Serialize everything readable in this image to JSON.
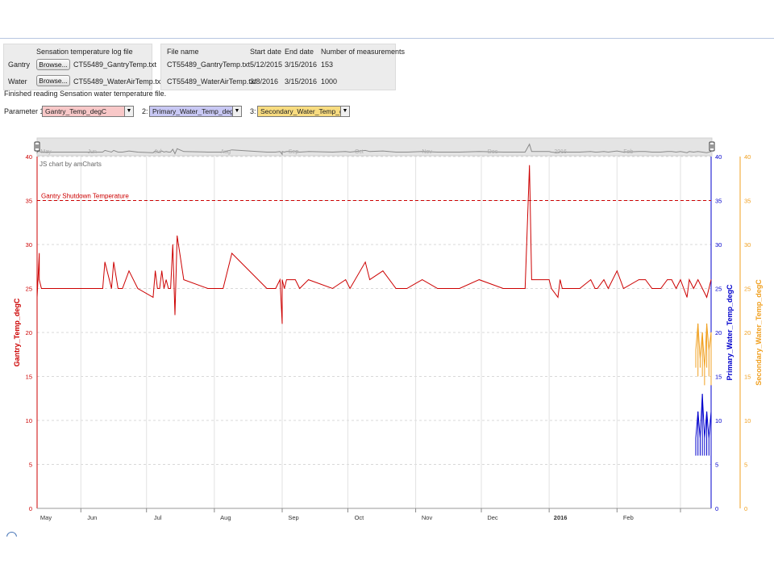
{
  "file_panel": {
    "header": "Sensation temperature log file",
    "rows": [
      {
        "label": "Gantry",
        "button": "Browse...",
        "file": "CT55489_GantryTemp.txt"
      },
      {
        "label": "Water",
        "button": "Browse...",
        "file": "CT55489_WaterAirTemp.txt"
      }
    ]
  },
  "info_table": {
    "headers": [
      "File name",
      "Start date",
      "End date",
      "Number of measurements"
    ],
    "rows": [
      [
        "CT55489_GantryTemp.txt",
        "5/12/2015",
        "3/15/2016",
        "153"
      ],
      [
        "CT55489_WaterAirTemp.txt",
        "3/8/2016",
        "3/15/2016",
        "1000"
      ]
    ]
  },
  "status": "Finished reading Sensation water temperature file.",
  "params": {
    "p1_label": "Parameter 1:",
    "p1_value": "Gantry_Temp_degC",
    "p1_color": "#f8c8c8",
    "p2_label": "2:",
    "p2_value": "Primary_Water_Temp_degC",
    "p2_color": "#c8c8f4",
    "p3_label": "3:",
    "p3_value": "Secondary_Water_Temp_degC",
    "p3_color": "#f8dc80"
  },
  "chart_data": {
    "type": "line",
    "credit": "JS chart by amCharts",
    "guide": {
      "label": "Gantry Shutdown Temperature",
      "value": 35,
      "color": "#cc0000"
    },
    "x_ticks": [
      "May",
      "Jun",
      "Jul",
      "Aug",
      "Sep",
      "Oct",
      "Nov",
      "Dec",
      "2016",
      "Feb"
    ],
    "x_range": [
      "2015-05-12",
      "2016-03-15"
    ],
    "y_axes": [
      {
        "title": "Gantry_Temp_degC",
        "color": "#cc0000",
        "range": [
          0,
          40
        ],
        "ticks": [
          "0",
          "5",
          "10",
          "15",
          "20",
          "25",
          "30",
          "35",
          "40"
        ]
      },
      {
        "title": "Primary_Water_Temp_degC",
        "color": "#0000cc",
        "range": [
          0,
          40
        ],
        "ticks": [
          "0",
          "5",
          "10",
          "15",
          "20",
          "25",
          "30",
          "35",
          "40"
        ]
      },
      {
        "title": "Secondary_Water_Temp_degC",
        "color": "#f0a020",
        "range": [
          0,
          40
        ],
        "ticks": [
          "0",
          "5",
          "10",
          "15",
          "20",
          "25",
          "30",
          "35",
          "40"
        ]
      }
    ],
    "series": [
      {
        "name": "Gantry_Temp_degC",
        "color": "#cc0000",
        "x": [
          "2015-05-12",
          "2015-05-12",
          "2015-05-13",
          "2015-05-13",
          "2015-05-14",
          "2015-05-18",
          "2015-06-11",
          "2015-06-12",
          "2015-06-14",
          "2015-06-15",
          "2015-06-16",
          "2015-06-18",
          "2015-06-20",
          "2015-06-23",
          "2015-06-27",
          "2015-07-04",
          "2015-07-05",
          "2015-07-06",
          "2015-07-07",
          "2015-07-08",
          "2015-07-09",
          "2015-07-10",
          "2015-07-11",
          "2015-07-12",
          "2015-07-13",
          "2015-07-14",
          "2015-07-15",
          "2015-07-18",
          "2015-07-29",
          "2015-08-05",
          "2015-08-09",
          "2015-08-25",
          "2015-08-29",
          "2015-08-31",
          "2015-09-01",
          "2015-09-01",
          "2015-09-02",
          "2015-09-03",
          "2015-09-07",
          "2015-09-09",
          "2015-09-13",
          "2015-09-24",
          "2015-09-30",
          "2015-10-02",
          "2015-10-09",
          "2015-10-11",
          "2015-10-17",
          "2015-10-23",
          "2015-10-28",
          "2015-11-04",
          "2015-11-11",
          "2015-11-21",
          "2015-11-30",
          "2015-12-11",
          "2015-12-21",
          "2015-12-23",
          "2015-12-24",
          "2015-12-25",
          "2016-01-01",
          "2016-01-02",
          "2016-01-05",
          "2016-01-06",
          "2016-01-07",
          "2016-01-15",
          "2016-01-20",
          "2016-01-22",
          "2016-01-23",
          "2016-01-26",
          "2016-01-28",
          "2016-02-01",
          "2016-02-04",
          "2016-02-11",
          "2016-02-14",
          "2016-02-17",
          "2016-02-21",
          "2016-02-24",
          "2016-02-26",
          "2016-02-28",
          "2016-03-01",
          "2016-03-04",
          "2016-03-05",
          "2016-03-07",
          "2016-03-09",
          "2016-03-13",
          "2016-03-15"
        ],
        "y": [
          27,
          24,
          29,
          26,
          25,
          25,
          25,
          28,
          26,
          25,
          28,
          25,
          25,
          27,
          25,
          24,
          27,
          25,
          25,
          27,
          25,
          26,
          25,
          25,
          30,
          22,
          31,
          26,
          25,
          25,
          29,
          25,
          25,
          26,
          21,
          26,
          25,
          26,
          26,
          25,
          26,
          25,
          26,
          25,
          28,
          26,
          27,
          25,
          25,
          26,
          25,
          25,
          26,
          25,
          25,
          39,
          26,
          26,
          26,
          25,
          24,
          26,
          25,
          25,
          26,
          25,
          25,
          26,
          25,
          27,
          25,
          26,
          26,
          25,
          25,
          26,
          26,
          25,
          26,
          24,
          26,
          25,
          26,
          24,
          26
        ]
      },
      {
        "name": "Primary_Water_Temp_degC",
        "color": "#0000cc",
        "x": [
          "2016-03-08",
          "2016-03-09",
          "2016-03-10",
          "2016-03-11",
          "2016-03-12",
          "2016-03-13",
          "2016-03-14",
          "2016-03-15"
        ],
        "y": [
          8,
          11,
          8,
          13,
          8,
          11,
          8,
          11
        ],
        "y_min": [
          6,
          6,
          6,
          6,
          6,
          6,
          6,
          6
        ]
      },
      {
        "name": "Secondary_Water_Temp_degC",
        "color": "#f0a020",
        "x": [
          "2016-03-08",
          "2016-03-09",
          "2016-03-10",
          "2016-03-11",
          "2016-03-12",
          "2016-03-13",
          "2016-03-14",
          "2016-03-15"
        ],
        "y": [
          18,
          21,
          17,
          20,
          16,
          21,
          18,
          20
        ],
        "y_min": [
          16,
          15,
          16,
          15,
          14,
          16,
          15,
          14
        ]
      }
    ],
    "scrollbar_ticks": [
      "May",
      "Jun",
      "Jul",
      "Aug",
      "Sep",
      "Oct",
      "Nov",
      "Dec",
      "2016",
      "Feb"
    ]
  }
}
